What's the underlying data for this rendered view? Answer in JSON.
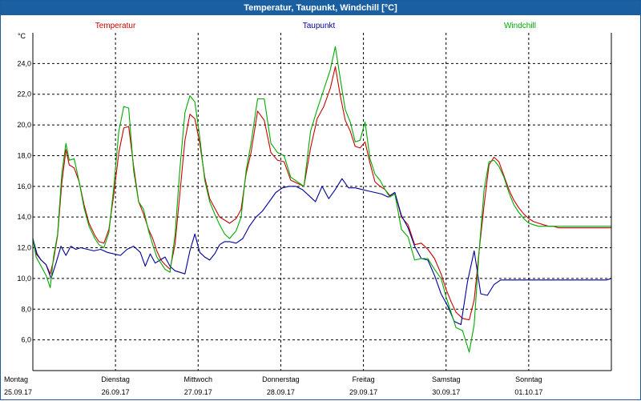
{
  "window": {
    "title": "Temperatur, Taupunkt, Windchill [°C]"
  },
  "colors": {
    "titlebar": "#1b5fa3",
    "temperatur": "#cc0000",
    "taupunkt": "#000099",
    "windchill": "#00aa00",
    "grid": "#000000"
  },
  "chart_data": {
    "type": "line",
    "title": "Temperatur, Taupunkt, Windchill [°C]",
    "ylabel": "°C",
    "xlabel": "",
    "ylim": [
      4.0,
      26.0
    ],
    "xlim": [
      0,
      7
    ],
    "y_ticks": [
      6.0,
      8.0,
      10.0,
      12.0,
      14.0,
      16.0,
      18.0,
      20.0,
      22.0,
      24.0
    ],
    "y_tick_labels": [
      "6,0",
      "8,0",
      "10,0",
      "12,0",
      "14,0",
      "16,0",
      "18,0",
      "20,0",
      "22,0",
      "24,0"
    ],
    "x_ticks": [
      {
        "day": "Montag",
        "date": "25.09.17"
      },
      {
        "day": "Dienstag",
        "date": "26.09.17"
      },
      {
        "day": "Mittwoch",
        "date": "27.09.17"
      },
      {
        "day": "Donnerstag",
        "date": "28.09.17"
      },
      {
        "day": "Freitag",
        "date": "29.09.17"
      },
      {
        "day": "Samstag",
        "date": "30.09.17"
      },
      {
        "day": "Sonntag",
        "date": "01.10.17"
      }
    ],
    "grid": true,
    "legend_position": "top",
    "series": [
      {
        "name": "Temperatur",
        "color": "#cc0000",
        "x": [
          0,
          0.04,
          0.1,
          0.16,
          0.21,
          0.25,
          0.3,
          0.35,
          0.4,
          0.44,
          0.5,
          0.56,
          0.62,
          0.68,
          0.75,
          0.8,
          0.86,
          0.92,
          0.98,
          1.04,
          1.1,
          1.16,
          1.22,
          1.28,
          1.34,
          1.4,
          1.45,
          1.5,
          1.55,
          1.6,
          1.66,
          1.72,
          1.78,
          1.84,
          1.9,
          1.96,
          2.02,
          2.08,
          2.14,
          2.2,
          2.26,
          2.32,
          2.38,
          2.46,
          2.52,
          2.58,
          2.64,
          2.72,
          2.8,
          2.88,
          2.96,
          3.04,
          3.12,
          3.2,
          3.28,
          3.36,
          3.44,
          3.52,
          3.6,
          3.66,
          3.72,
          3.78,
          3.84,
          3.9,
          3.96,
          4.02,
          4.08,
          4.14,
          4.2,
          4.26,
          4.32,
          4.38,
          4.46,
          4.54,
          4.62,
          4.7,
          4.78,
          4.86,
          4.94,
          5.0,
          5.06,
          5.12,
          5.2,
          5.28,
          5.34,
          5.4,
          5.46,
          5.52,
          5.58,
          5.64,
          5.7,
          5.76,
          5.82,
          5.88,
          5.94,
          6.0,
          6.06,
          6.12,
          6.18,
          6.24,
          6.3,
          6.36,
          6.42,
          6.48,
          6.56,
          6.64,
          6.72,
          6.8,
          6.88,
          6.94,
          7.0
        ],
        "values": [
          12.6,
          11.6,
          11.2,
          10.9,
          10.3,
          11.2,
          12.8,
          16.2,
          18.4,
          17.4,
          17.2,
          16.3,
          14.8,
          13.6,
          12.8,
          12.4,
          12.3,
          13.2,
          15.5,
          18.2,
          19.8,
          19.9,
          17.3,
          15.0,
          14.2,
          13.2,
          12.6,
          11.8,
          11.2,
          10.9,
          10.6,
          12.2,
          15.6,
          19.0,
          20.7,
          20.4,
          18.8,
          16.6,
          15.2,
          14.6,
          14.0,
          13.8,
          13.6,
          13.9,
          14.5,
          16.8,
          18.2,
          20.9,
          20.3,
          18.2,
          17.7,
          17.6,
          16.4,
          16.2,
          16.0,
          18.5,
          20.4,
          21.2,
          22.4,
          23.8,
          21.9,
          20.3,
          19.6,
          18.6,
          18.5,
          18.9,
          17.5,
          16.3,
          16.0,
          15.8,
          15.4,
          15.6,
          14.0,
          13.5,
          12.2,
          12.3,
          11.9,
          11.3,
          10.3,
          9.3,
          8.5,
          7.8,
          7.4,
          7.3,
          8.6,
          11.8,
          14.8,
          17.4,
          17.9,
          17.6,
          16.7,
          15.8,
          15.1,
          14.6,
          14.2,
          13.9,
          13.7,
          13.6,
          13.5,
          13.4,
          13.4,
          13.3,
          13.3,
          13.3,
          13.3,
          13.3,
          13.3,
          13.3,
          13.3,
          13.3,
          13.3
        ]
      },
      {
        "name": "Taupunkt",
        "color": "#000099",
        "x": [
          0,
          0.05,
          0.1,
          0.16,
          0.22,
          0.28,
          0.34,
          0.4,
          0.46,
          0.52,
          0.58,
          0.66,
          0.74,
          0.82,
          0.9,
          0.98,
          1.06,
          1.14,
          1.22,
          1.3,
          1.36,
          1.42,
          1.48,
          1.54,
          1.6,
          1.66,
          1.72,
          1.78,
          1.84,
          1.9,
          1.96,
          2.02,
          2.08,
          2.14,
          2.2,
          2.26,
          2.32,
          2.38,
          2.46,
          2.54,
          2.62,
          2.7,
          2.78,
          2.86,
          2.94,
          3.02,
          3.1,
          3.18,
          3.26,
          3.34,
          3.42,
          3.5,
          3.58,
          3.66,
          3.74,
          3.82,
          3.9,
          3.98,
          4.06,
          4.14,
          4.22,
          4.3,
          4.38,
          4.46,
          4.54,
          4.62,
          4.7,
          4.78,
          4.86,
          4.94,
          5.02,
          5.1,
          5.18,
          5.26,
          5.34,
          5.42,
          5.5,
          5.58,
          5.66,
          5.74,
          5.82,
          5.9,
          5.98,
          6.06,
          6.14,
          6.22,
          6.3,
          6.38,
          6.46,
          6.54,
          6.62,
          6.7,
          6.78,
          6.86,
          6.94,
          7.0
        ],
        "values": [
          12.6,
          11.6,
          11.2,
          10.9,
          10.0,
          11.0,
          12.1,
          11.5,
          12.1,
          11.9,
          12.0,
          11.9,
          11.8,
          11.9,
          11.7,
          11.6,
          11.5,
          11.9,
          12.1,
          11.7,
          10.8,
          11.6,
          11.0,
          11.2,
          11.4,
          10.8,
          10.5,
          10.4,
          10.3,
          11.8,
          12.9,
          11.7,
          11.4,
          11.2,
          11.6,
          12.2,
          12.4,
          12.4,
          12.3,
          12.6,
          13.4,
          14.0,
          14.4,
          15.0,
          15.6,
          15.9,
          16.0,
          16.0,
          15.8,
          15.4,
          15.0,
          16.0,
          15.2,
          15.8,
          16.5,
          15.9,
          15.9,
          15.8,
          15.7,
          15.6,
          15.5,
          15.3,
          15.6,
          14.1,
          13.3,
          12.1,
          11.3,
          11.2,
          10.2,
          9.0,
          8.2,
          7.2,
          7.0,
          9.8,
          11.8,
          9.0,
          8.9,
          9.6,
          9.9,
          9.9,
          9.9,
          9.9,
          9.9,
          9.9,
          9.9,
          9.9,
          9.9,
          9.9,
          9.9,
          9.9,
          9.9,
          9.9,
          9.9,
          9.9,
          9.9,
          10.0
        ]
      },
      {
        "name": "Windchill",
        "color": "#00aa00",
        "x": [
          0,
          0.04,
          0.1,
          0.16,
          0.21,
          0.25,
          0.3,
          0.35,
          0.4,
          0.44,
          0.5,
          0.56,
          0.62,
          0.68,
          0.75,
          0.8,
          0.86,
          0.92,
          0.98,
          1.04,
          1.1,
          1.16,
          1.22,
          1.28,
          1.34,
          1.4,
          1.45,
          1.5,
          1.55,
          1.6,
          1.66,
          1.72,
          1.78,
          1.84,
          1.9,
          1.96,
          2.02,
          2.08,
          2.14,
          2.2,
          2.26,
          2.32,
          2.38,
          2.46,
          2.52,
          2.58,
          2.64,
          2.72,
          2.8,
          2.88,
          2.96,
          3.04,
          3.12,
          3.2,
          3.28,
          3.36,
          3.44,
          3.52,
          3.6,
          3.66,
          3.72,
          3.78,
          3.84,
          3.9,
          3.96,
          4.02,
          4.08,
          4.14,
          4.2,
          4.26,
          4.32,
          4.38,
          4.46,
          4.54,
          4.62,
          4.7,
          4.78,
          4.86,
          4.94,
          5.0,
          5.06,
          5.12,
          5.2,
          5.28,
          5.34,
          5.4,
          5.46,
          5.52,
          5.58,
          5.64,
          5.7,
          5.76,
          5.82,
          5.88,
          5.94,
          6.0,
          6.06,
          6.12,
          6.18,
          6.24,
          6.3,
          6.36,
          6.42,
          6.48,
          6.56,
          6.64,
          6.72,
          6.8,
          6.88,
          6.94,
          7.0
        ],
        "values": [
          12.6,
          11.4,
          10.8,
          10.2,
          9.4,
          11.4,
          12.9,
          16.8,
          18.8,
          17.7,
          17.8,
          16.3,
          14.6,
          13.4,
          12.6,
          12.2,
          12.0,
          13.0,
          16.0,
          19.6,
          21.2,
          21.1,
          17.0,
          15.0,
          14.5,
          13.1,
          12.2,
          11.4,
          11.0,
          10.6,
          10.4,
          12.8,
          17.2,
          20.8,
          21.9,
          21.5,
          19.2,
          16.4,
          15.0,
          14.2,
          13.5,
          12.9,
          12.6,
          13.1,
          14.0,
          17.0,
          18.8,
          21.7,
          21.7,
          18.8,
          18.2,
          18.0,
          16.6,
          16.3,
          16.0,
          19.6,
          21.0,
          22.3,
          23.6,
          25.1,
          23.0,
          21.0,
          20.2,
          18.9,
          19.0,
          20.2,
          17.8,
          16.8,
          16.4,
          15.8,
          15.3,
          15.5,
          13.2,
          12.7,
          11.2,
          11.3,
          11.3,
          10.6,
          10.0,
          8.8,
          7.8,
          6.8,
          6.6,
          5.2,
          7.0,
          11.8,
          15.8,
          17.6,
          17.7,
          17.3,
          16.6,
          15.6,
          14.8,
          14.3,
          13.9,
          13.6,
          13.5,
          13.4,
          13.4,
          13.4,
          13.4,
          13.4,
          13.4,
          13.4,
          13.4,
          13.4,
          13.4,
          13.4,
          13.4,
          13.4,
          13.4
        ]
      }
    ]
  }
}
